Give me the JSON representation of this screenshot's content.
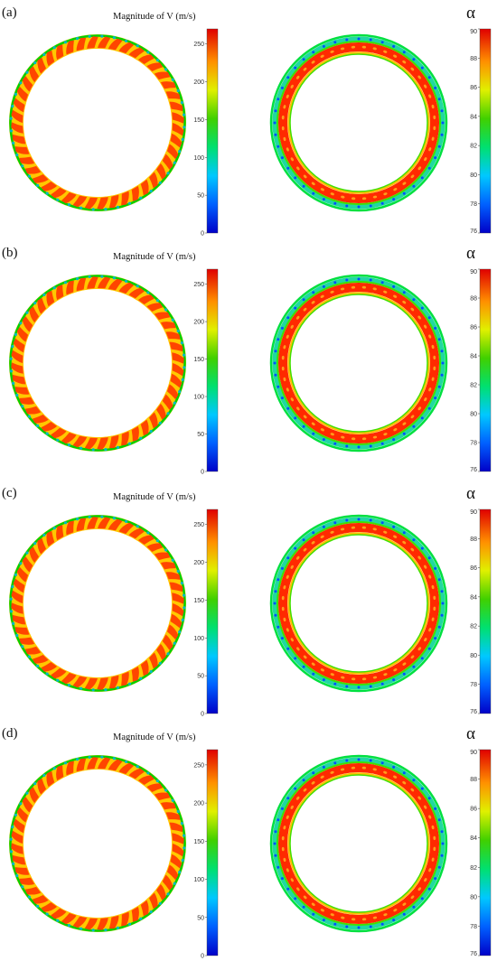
{
  "panels": [
    {
      "label": "(a)",
      "velocity_title": "Magnitude of V (m/s)",
      "velocity_ticks": [
        "0",
        "50",
        "100",
        "150",
        "200",
        "250"
      ],
      "alpha_symbol": "α",
      "alpha_ticks": [
        "76",
        "78",
        "80",
        "82",
        "84",
        "86",
        "88",
        "90"
      ]
    },
    {
      "label": "(b)",
      "velocity_title": "Magnitude of V (m/s)",
      "velocity_ticks": [
        "0",
        "50",
        "100",
        "150",
        "200",
        "250"
      ],
      "alpha_symbol": "α",
      "alpha_ticks": [
        "76",
        "78",
        "80",
        "82",
        "84",
        "86",
        "88",
        "90"
      ]
    },
    {
      "label": "(c)",
      "velocity_title": "Magnitude of V (m/s)",
      "velocity_ticks": [
        "0",
        "50",
        "100",
        "150",
        "200",
        "250"
      ],
      "alpha_symbol": "α",
      "alpha_ticks": [
        "76",
        "78",
        "80",
        "82",
        "84",
        "86",
        "88",
        "90"
      ]
    },
    {
      "label": "(d)",
      "velocity_title": "Magnitude of V (m/s)",
      "velocity_ticks": [
        "0",
        "50",
        "100",
        "150",
        "200",
        "250"
      ],
      "alpha_symbol": "α",
      "alpha_ticks": [
        "76",
        "78",
        "80",
        "82",
        "84",
        "86",
        "88",
        "90"
      ]
    }
  ],
  "colors": {
    "velocity_high": "#ff3a00",
    "velocity_mid": "#ffc800",
    "velocity_low": "#00d000",
    "alpha_high": "#ff2a00",
    "alpha_low": "#0050ff"
  }
}
